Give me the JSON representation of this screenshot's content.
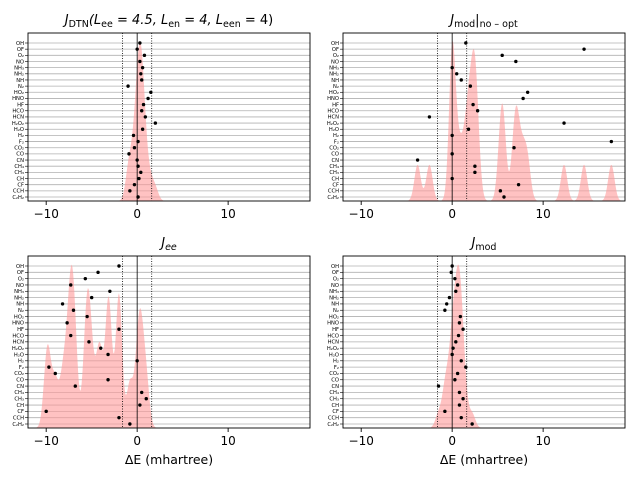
{
  "chart_data": [
    {
      "type": "scatter",
      "title": "J_DTN(L_ee = 4.5, L_en = 4, L_een = 4)",
      "title_parts": [
        "J",
        "DTN",
        "(L",
        "ee",
        " = 4.5, L",
        "en",
        " = 4, L",
        "een",
        " = 4)"
      ],
      "xlabel": "",
      "xlim": [
        -12,
        19
      ],
      "xticks": [
        -10,
        0,
        10
      ],
      "xtick_labels": [
        "−10",
        "0",
        "10"
      ],
      "molecules": [
        "OH",
        "OF",
        "O₂",
        "NO",
        "NH₃",
        "NH₂",
        "NH",
        "N₂",
        "HO₂",
        "HNO",
        "HF",
        "HCO",
        "HCN",
        "H₂O₂",
        "H₂O",
        "H₂",
        "F₂",
        "CO₂",
        "CO",
        "CN",
        "CH₄",
        "CH₃",
        "CH",
        "CF",
        "CCH",
        "C₂H₂"
      ],
      "values": [
        0.3,
        0.0,
        0.8,
        0.3,
        0.6,
        0.4,
        0.5,
        -1.0,
        1.5,
        1.2,
        0.7,
        0.5,
        0.9,
        2.0,
        0.6,
        -0.4,
        0.1,
        -0.3,
        -0.9,
        0.0,
        0.1,
        0.4,
        0.2,
        -0.3,
        -0.8,
        0.1
      ],
      "chem_accuracy_band": [
        -1.6,
        1.6
      ],
      "density_color": "#ff9999",
      "point_color": "#000000"
    },
    {
      "type": "scatter",
      "title": "J_mod|no-opt",
      "title_parts": [
        "J",
        "mod",
        "|",
        "no – opt"
      ],
      "xlabel": "",
      "xlim": [
        -12,
        19
      ],
      "xticks": [
        -10,
        0,
        10
      ],
      "xtick_labels": [
        "−10",
        "0",
        "10"
      ],
      "molecules": [
        "OH",
        "OF",
        "O₂",
        "NO",
        "NH₃",
        "NH₂",
        "NH",
        "N₂",
        "HO₂",
        "HNO",
        "HF",
        "HCO",
        "HCN",
        "H₂O₂",
        "H₂O",
        "H₂",
        "F₂",
        "CO₂",
        "CO",
        "CN",
        "CH₄",
        "CH₃",
        "CH",
        "CF",
        "CCH",
        "C₂H₂"
      ],
      "values": [
        1.5,
        14.5,
        5.5,
        7.0,
        0.0,
        0.5,
        1.0,
        2.0,
        8.3,
        7.8,
        2.3,
        2.8,
        -2.5,
        12.3,
        1.8,
        0.0,
        17.5,
        6.8,
        0.0,
        -3.8,
        2.5,
        2.5,
        0.0,
        7.3,
        5.3,
        5.7
      ],
      "chem_accuracy_band": [
        -1.6,
        1.6
      ],
      "density_color": "#ff9999",
      "point_color": "#000000"
    },
    {
      "type": "scatter",
      "title": "J_ee",
      "title_parts": [
        "J",
        "ee"
      ],
      "xlabel": "ΔE (mhartree)",
      "xlim": [
        -12,
        19
      ],
      "xticks": [
        -10,
        0,
        10
      ],
      "xtick_labels": [
        "−10",
        "0",
        "10"
      ],
      "molecules": [
        "OH",
        "OF",
        "O₂",
        "NO",
        "NH₃",
        "NH₂",
        "NH",
        "N₂",
        "HO₂",
        "HNO",
        "HF",
        "HCO",
        "HCN",
        "H₂O₂",
        "H₂O",
        "H₂",
        "F₂",
        "CO₂",
        "CO",
        "CN",
        "CH₄",
        "CH₃",
        "CH",
        "CF",
        "CCH",
        "C₂H₂"
      ],
      "values": [
        -2.0,
        -4.3,
        -5.7,
        -7.3,
        -3.0,
        -5.0,
        -8.2,
        -7.0,
        -5.5,
        -7.7,
        -2.0,
        -7.3,
        -5.3,
        -4.0,
        -3.2,
        0.0,
        -9.7,
        -9.0,
        -3.2,
        -6.8,
        0.5,
        1.0,
        0.3,
        -10.0,
        -2.0,
        -0.8
      ],
      "chem_accuracy_band": [
        -1.6,
        1.6
      ],
      "density_color": "#ff9999",
      "point_color": "#000000"
    },
    {
      "type": "scatter",
      "title": "J_mod",
      "title_parts": [
        "J",
        "mod"
      ],
      "xlabel": "ΔE (mhartree)",
      "xlim": [
        -12,
        19
      ],
      "xticks": [
        -10,
        0,
        10
      ],
      "xtick_labels": [
        "−10",
        "0",
        "10"
      ],
      "molecules": [
        "OH",
        "OF",
        "O₂",
        "NO",
        "NH₃",
        "NH₂",
        "NH",
        "N₂",
        "HO₂",
        "HNO",
        "HF",
        "HCO",
        "HCN",
        "H₂O₂",
        "H₂O",
        "H₂",
        "F₂",
        "CO₂",
        "CO",
        "CN",
        "CH₄",
        "CH₃",
        "CH",
        "CF",
        "CCH",
        "C₂H₂"
      ],
      "values": [
        0.0,
        -0.1,
        0.3,
        0.6,
        0.4,
        -0.3,
        -0.6,
        -0.8,
        0.9,
        0.8,
        1.2,
        0.7,
        0.4,
        0.1,
        0.0,
        1.0,
        1.5,
        0.6,
        0.3,
        -1.5,
        0.8,
        1.2,
        0.8,
        -0.8,
        1.0,
        2.2
      ],
      "chem_accuracy_band": [
        -1.6,
        1.6
      ],
      "density_color": "#ff9999",
      "point_color": "#000000"
    }
  ]
}
